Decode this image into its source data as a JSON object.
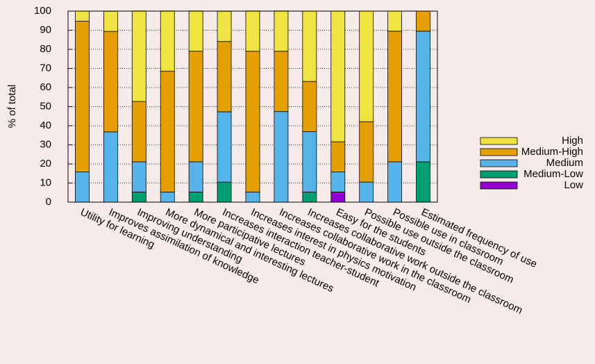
{
  "chart_data": {
    "type": "stacked-bar",
    "y_label": "% of total",
    "categories": [
      "Utility for learning",
      "Improves assimilation of knowledge",
      "Improving understanding",
      "More dynamical and interesting lectures",
      "More participative lectures",
      "Increases interaction teacher-student",
      "Increases interest in physics  motivation",
      "Increases collaborative work in the classroom",
      "Increases collaborative work outside the classroom",
      "Easy for the students",
      "Possible use outside the classroom",
      "Possible use in classroom",
      "Estimated frequency of use"
    ],
    "series": [
      {
        "name": "Low",
        "color": "#9400d3",
        "values": [
          0,
          0,
          0,
          0,
          0,
          0,
          0,
          0,
          0,
          5.3,
          0,
          0,
          0
        ]
      },
      {
        "name": "Medium-Low",
        "color": "#009e73",
        "values": [
          0,
          0,
          5.3,
          0,
          5.3,
          10.5,
          0,
          0,
          5.3,
          0,
          0,
          0,
          21.1
        ]
      },
      {
        "name": "Medium",
        "color": "#56b4e9",
        "values": [
          15.8,
          36.8,
          15.8,
          5.3,
          15.8,
          36.8,
          5.3,
          47.4,
          31.6,
          10.5,
          10.5,
          21.1,
          68.4
        ]
      },
      {
        "name": "Medium-High",
        "color": "#e69f00",
        "values": [
          78.9,
          52.6,
          31.6,
          63.2,
          57.9,
          36.8,
          73.7,
          31.6,
          26.3,
          15.8,
          31.6,
          68.4,
          10.5
        ]
      },
      {
        "name": "High",
        "color": "#f0e442",
        "values": [
          5.3,
          10.5,
          47.4,
          31.6,
          21.1,
          15.8,
          21.1,
          21.1,
          36.8,
          68.4,
          57.9,
          10.5,
          0
        ]
      }
    ],
    "ylim": [
      0,
      100
    ],
    "yticks": [
      0,
      10,
      20,
      30,
      40,
      50,
      60,
      70,
      80,
      90,
      100
    ],
    "grid": true
  }
}
